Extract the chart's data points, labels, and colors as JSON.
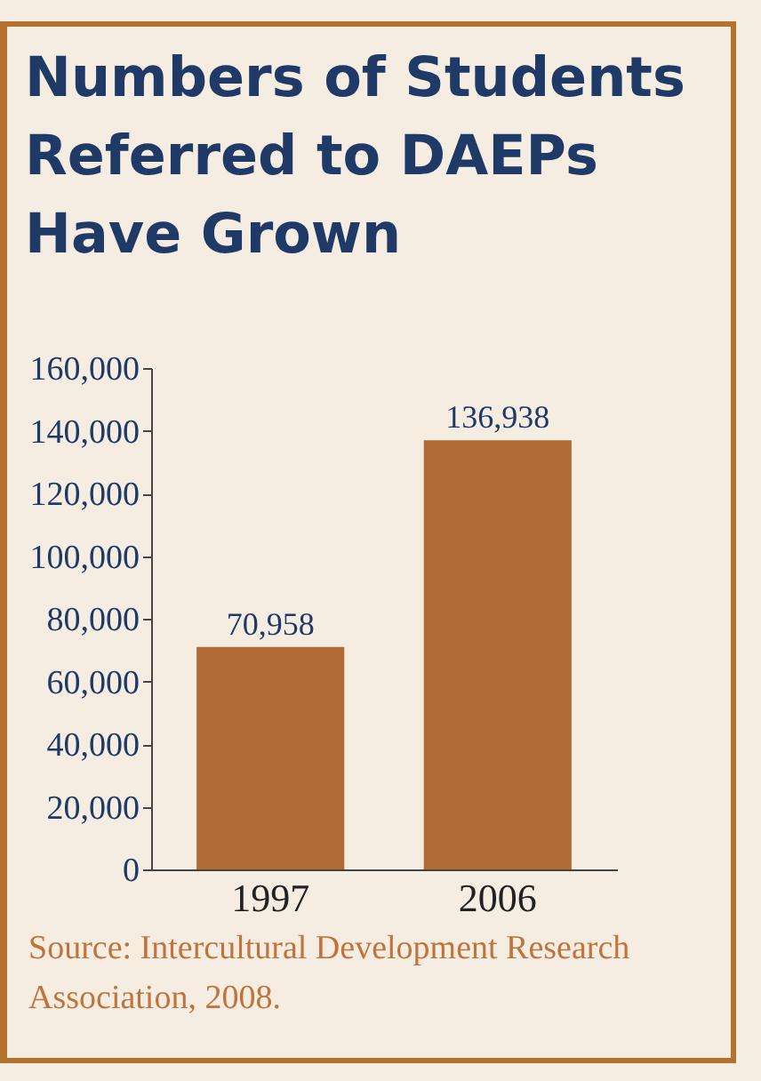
{
  "chart_data": {
    "type": "bar",
    "title": "Numbers of Students Referred to DAEPs Have Grown",
    "categories": [
      "1997",
      "2006"
    ],
    "values": [
      70958,
      136938
    ],
    "color": "#b06a33",
    "ylim": [
      0,
      160000
    ],
    "yticks": [
      {
        "value": 0,
        "label": "0"
      },
      {
        "value": 20000,
        "label": "20,000"
      },
      {
        "value": 40000,
        "label": "40,000"
      },
      {
        "value": 60000,
        "label": "60,000"
      },
      {
        "value": 80000,
        "label": "80,000"
      },
      {
        "value": 100000,
        "label": "100,000"
      },
      {
        "value": 120000,
        "label": "120,000"
      },
      {
        "value": 140000,
        "label": "140,000"
      },
      {
        "value": 160000,
        "label": "160,000"
      }
    ],
    "value_labels": [
      "70,958",
      "136,938"
    ],
    "annotations": [
      "Source: Intercultural Development Research Association, 2008."
    ]
  }
}
